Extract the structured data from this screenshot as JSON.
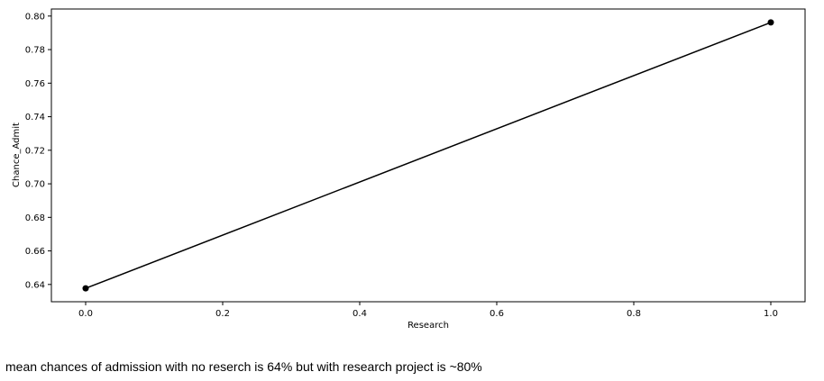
{
  "chart_data": {
    "type": "line",
    "title": "",
    "xlabel": "Research",
    "ylabel": "Chance_Admit",
    "x": [
      0.0,
      1.0
    ],
    "y": [
      0.6377,
      0.7962
    ],
    "xlim": [
      -0.05,
      1.05
    ],
    "ylim": [
      0.6297,
      0.8042
    ],
    "xticks": [
      0.0,
      0.2,
      0.4,
      0.6,
      0.8,
      1.0
    ],
    "xtick_labels": [
      "0.0",
      "0.2",
      "0.4",
      "0.6",
      "0.8",
      "1.0"
    ],
    "yticks": [
      0.64,
      0.66,
      0.68,
      0.7,
      0.72,
      0.74,
      0.76,
      0.78,
      0.8
    ],
    "ytick_labels": [
      "0.64",
      "0.66",
      "0.68",
      "0.70",
      "0.72",
      "0.74",
      "0.76",
      "0.78",
      "0.80"
    ],
    "grid": false,
    "marker": "circle",
    "line_color": "#000000",
    "marker_color": "#000000"
  },
  "caption": "mean chances of admission with no reserch is 64% but with research project is ~80%"
}
